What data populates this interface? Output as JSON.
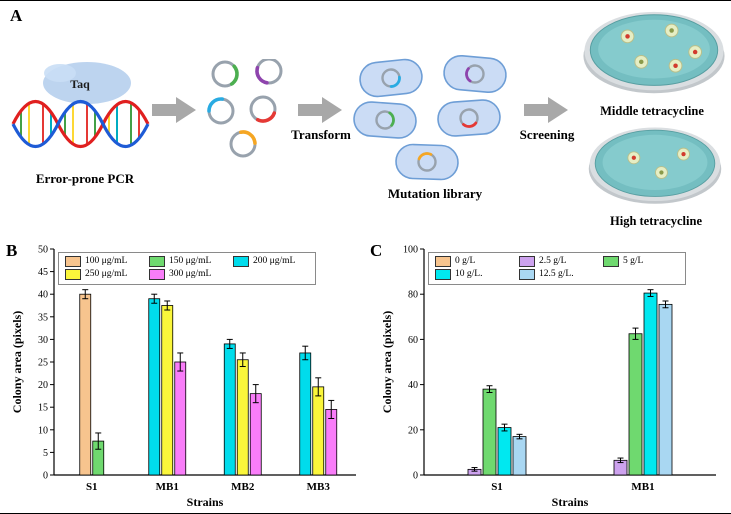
{
  "figure": {
    "panel_a": {
      "label": "A",
      "taq": "Taq",
      "error_prone_pcr": "Error-prone PCR",
      "transform": "Transform",
      "mutation_library": "Mutation library",
      "screening": "Screening",
      "middle_dish_label": "Middle tetracycline",
      "high_dish_label": "High tetracycline"
    },
    "panel_b_label": "B",
    "panel_c_label": "C"
  },
  "chart_data": [
    {
      "type": "bar",
      "panel": "B",
      "title": "",
      "xlabel": "Strains",
      "ylabel": "Colony area (pixels)",
      "ylim": [
        0,
        50
      ],
      "ytick_step": 5,
      "grid": false,
      "legend_position": "top-left",
      "legend_rows": [
        3,
        2
      ],
      "categories": [
        "S1",
        "MB1",
        "MB2",
        "MB3"
      ],
      "series": [
        {
          "name": "100 μg/mL",
          "color": "#F7C48E",
          "values": [
            40,
            null,
            null,
            null
          ],
          "errors": [
            1,
            null,
            null,
            null
          ]
        },
        {
          "name": "150 μg/mL",
          "color": "#6FD96F",
          "values": [
            7.5,
            null,
            null,
            null
          ],
          "errors": [
            1.8,
            null,
            null,
            null
          ]
        },
        {
          "name": "200 μg/mL",
          "color": "#00DCEC",
          "values": [
            null,
            39,
            29,
            27
          ],
          "errors": [
            null,
            1,
            1,
            1.5
          ]
        },
        {
          "name": "250 μg/mL",
          "color": "#FAF63B",
          "values": [
            null,
            37.5,
            25.5,
            19.5
          ],
          "errors": [
            null,
            1,
            1.5,
            2
          ]
        },
        {
          "name": "300 μg/mL",
          "color": "#F97DF9",
          "values": [
            null,
            25,
            18,
            14.5
          ],
          "errors": [
            null,
            2,
            2,
            2
          ]
        }
      ]
    },
    {
      "type": "bar",
      "panel": "C",
      "title": "",
      "xlabel": "Strains",
      "ylabel": "Colony area (pixels)",
      "ylim": [
        0,
        100
      ],
      "ytick_step": 20,
      "grid": false,
      "legend_position": "top-left",
      "legend_rows": [
        3,
        2
      ],
      "categories": [
        "S1",
        "MB1"
      ],
      "series": [
        {
          "name": "0 g/L",
          "color": "#F7C48E",
          "values": [
            null,
            null
          ],
          "errors": [
            null,
            null
          ]
        },
        {
          "name": "2.5 g/L",
          "color": "#CDA2EE",
          "values": [
            2.5,
            6.5
          ],
          "errors": [
            0.8,
            1
          ]
        },
        {
          "name": "5 g/L",
          "color": "#6FD96F",
          "values": [
            38,
            62.5
          ],
          "errors": [
            1.5,
            2.5
          ]
        },
        {
          "name": "10 g/L.",
          "color": "#00E8F0",
          "values": [
            21,
            80.5
          ],
          "errors": [
            1.5,
            1.5
          ]
        },
        {
          "name": "12.5 g/L.",
          "color": "#A9D7F2",
          "values": [
            17,
            75.5
          ],
          "errors": [
            1,
            1.5
          ]
        }
      ]
    }
  ]
}
